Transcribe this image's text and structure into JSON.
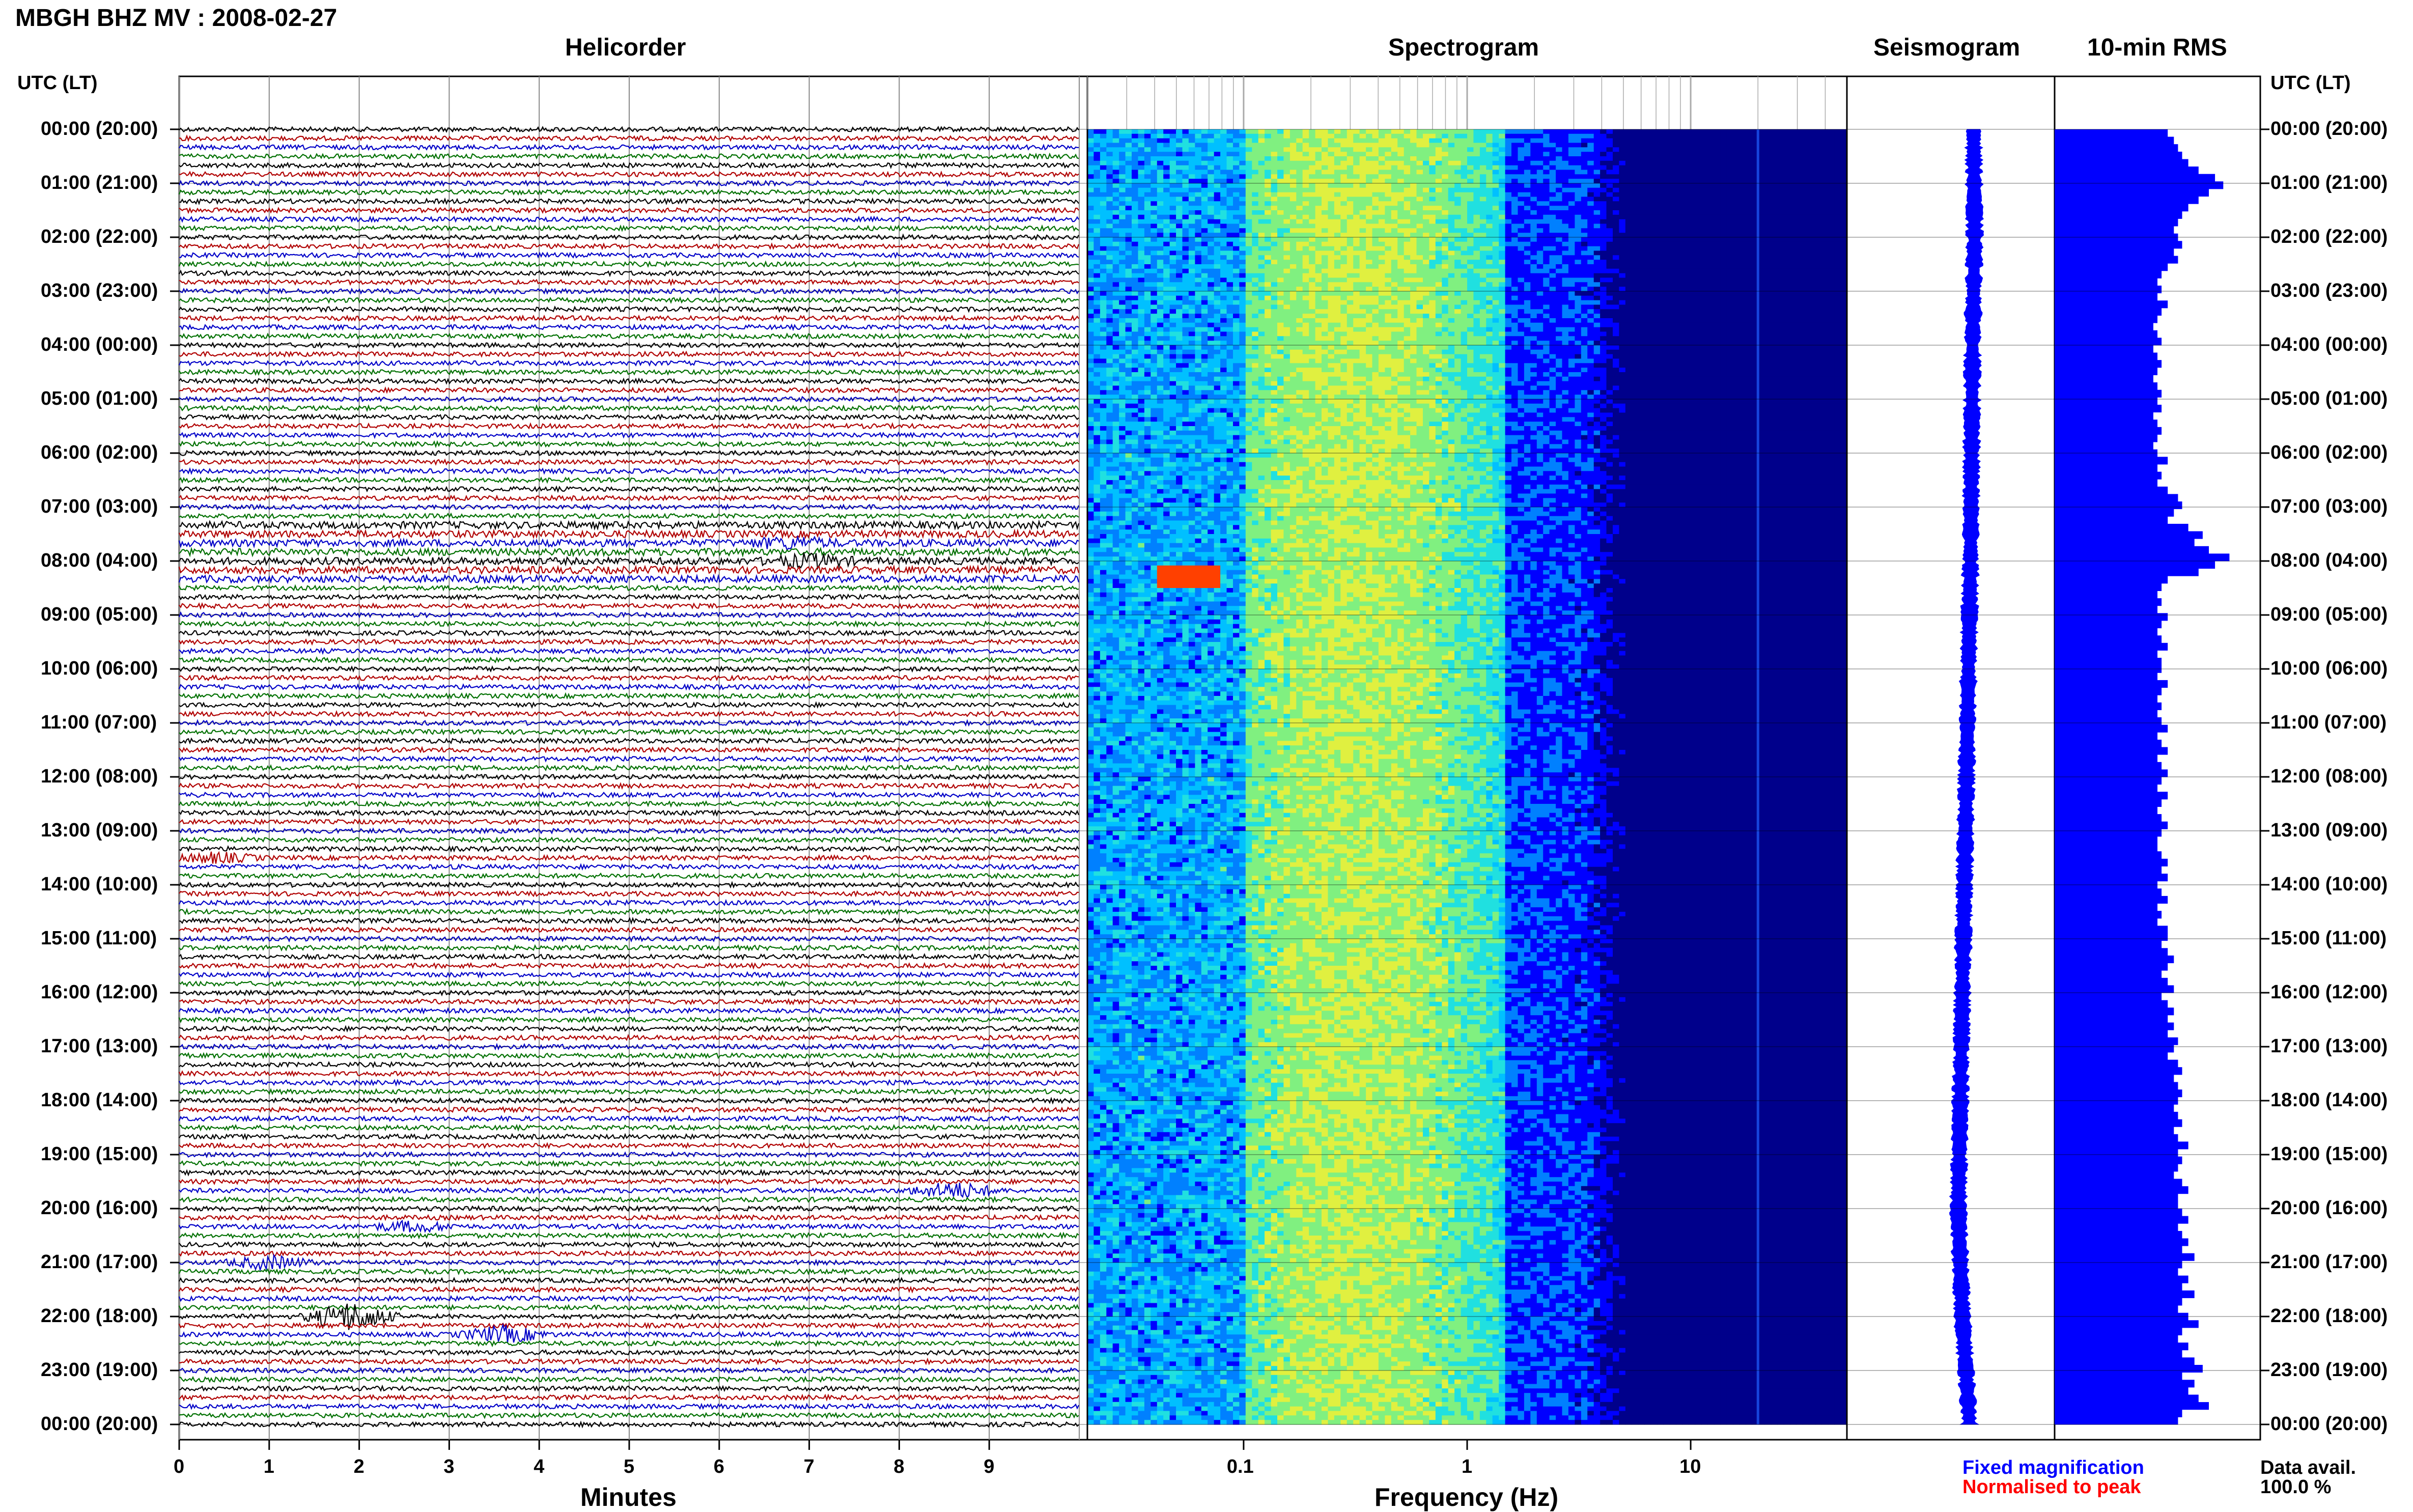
{
  "title": "MBGH BHZ MV : 2008-02-27",
  "panels": {
    "helicorder": "Helicorder",
    "spectrogram": "Spectrogram",
    "seismogram": "Seismogram",
    "rms": "10-min RMS"
  },
  "axis": {
    "utc_lt_left": "UTC (LT)",
    "utc_lt_right": "UTC (LT)",
    "minutes_label": "Minutes",
    "frequency_label": "Frequency (Hz)"
  },
  "legend": {
    "fixed": "Fixed magnification",
    "normalised": "Normalised to peak",
    "data_avail": "Data avail.",
    "data_avail_value": "100.0 %"
  },
  "colors": {
    "trace_cycle": [
      "#000000",
      "#b00000",
      "#0000c8",
      "#007000"
    ],
    "rms_bar": "#0000ff",
    "legend_fixed": "#0000ff",
    "legend_normalised": "#ff0000"
  },
  "chart_data": [
    {
      "type": "line",
      "panel": "helicorder",
      "xlabel": "Minutes",
      "x_ticks": [
        "0",
        "1",
        "2",
        "3",
        "4",
        "5",
        "6",
        "7",
        "8",
        "9"
      ],
      "xlim": [
        0,
        10
      ],
      "y_ticks": [
        "00:00 (20:00)",
        "01:00 (21:00)",
        "02:00 (22:00)",
        "03:00 (23:00)",
        "04:00 (00:00)",
        "05:00 (01:00)",
        "06:00 (02:00)",
        "07:00 (03:00)",
        "08:00 (04:00)",
        "09:00 (05:00)",
        "10:00 (06:00)",
        "11:00 (07:00)",
        "12:00 (08:00)",
        "13:00 (09:00)",
        "14:00 (10:00)",
        "15:00 (11:00)",
        "16:00 (12:00)",
        "17:00 (13:00)",
        "18:00 (14:00)",
        "19:00 (15:00)",
        "20:00 (16:00)",
        "21:00 (17:00)",
        "22:00 (18:00)",
        "23:00 (19:00)",
        "00:00 (20:00)"
      ],
      "traces_per_hour": 6,
      "events": [
        {
          "time_utc": "07:40",
          "minute": 6.8,
          "amplitude": 1.5
        },
        {
          "time_utc": "08:00",
          "minute": 7.0,
          "amplitude": 1.8
        },
        {
          "time_utc": "13:30",
          "minute": 0.4,
          "amplitude": 1.5
        },
        {
          "time_utc": "19:40",
          "minute": 8.6,
          "amplitude": 2.5
        },
        {
          "time_utc": "20:20",
          "minute": 2.6,
          "amplitude": 1.5
        },
        {
          "time_utc": "21:00",
          "minute": 1.0,
          "amplitude": 2.0
        },
        {
          "time_utc": "22:00",
          "minute": 1.9,
          "amplitude": 4.5
        },
        {
          "time_utc": "22:20",
          "minute": 3.6,
          "amplitude": 2.5
        }
      ]
    },
    {
      "type": "heatmap",
      "panel": "spectrogram",
      "xlabel": "Frequency (Hz)",
      "x_scale": "log",
      "xlim": [
        0.02,
        50
      ],
      "x_ticks": [
        "0.1",
        "1",
        "10"
      ],
      "colormap": [
        "#00008b",
        "#0000ff",
        "#0080ff",
        "#00c0ff",
        "#20e0e0",
        "#80f080",
        "#e0f040",
        "#ffc000",
        "#ff4000"
      ],
      "features": [
        {
          "label": "peak band",
          "freq_hz": [
            0.2,
            0.5
          ]
        },
        {
          "label": "hot spot",
          "time_utc": "08:15",
          "freq_hz": [
            0.04,
            0.08
          ]
        },
        {
          "label": "harmonic line",
          "freq_hz": 20
        }
      ]
    },
    {
      "type": "line",
      "panel": "seismogram",
      "x": [
        "00:00",
        "02:00",
        "04:00",
        "06:00",
        "08:00",
        "10:00",
        "12:00",
        "14:00",
        "16:00",
        "18:00",
        "20:00",
        "22:00",
        "24:00"
      ],
      "values": [
        0.1,
        0.15,
        0.05,
        0.0,
        -0.05,
        -0.15,
        -0.25,
        -0.35,
        -0.45,
        -0.55,
        -0.65,
        -0.45,
        -0.1
      ]
    },
    {
      "type": "bar",
      "panel": "rms",
      "orientation": "horizontal",
      "interval_minutes": 10,
      "values": [
        0.55,
        0.58,
        0.6,
        0.62,
        0.65,
        0.7,
        0.78,
        0.82,
        0.75,
        0.7,
        0.65,
        0.62,
        0.6,
        0.58,
        0.6,
        0.62,
        0.58,
        0.6,
        0.55,
        0.52,
        0.5,
        0.52,
        0.5,
        0.55,
        0.52,
        0.5,
        0.48,
        0.5,
        0.52,
        0.48,
        0.5,
        0.52,
        0.5,
        0.48,
        0.5,
        0.52,
        0.5,
        0.52,
        0.48,
        0.5,
        0.52,
        0.5,
        0.48,
        0.5,
        0.55,
        0.5,
        0.52,
        0.5,
        0.55,
        0.6,
        0.62,
        0.58,
        0.55,
        0.65,
        0.72,
        0.68,
        0.75,
        0.85,
        0.78,
        0.7,
        0.55,
        0.52,
        0.5,
        0.52,
        0.5,
        0.55,
        0.52,
        0.5,
        0.52,
        0.55,
        0.5,
        0.52,
        0.52,
        0.5,
        0.55,
        0.52,
        0.5,
        0.52,
        0.5,
        0.52,
        0.55,
        0.5,
        0.52,
        0.55,
        0.5,
        0.52,
        0.55,
        0.52,
        0.5,
        0.55,
        0.52,
        0.5,
        0.52,
        0.55,
        0.52,
        0.5,
        0.5,
        0.52,
        0.55,
        0.52,
        0.55,
        0.5,
        0.52,
        0.55,
        0.5,
        0.52,
        0.5,
        0.55,
        0.55,
        0.52,
        0.55,
        0.58,
        0.55,
        0.52,
        0.55,
        0.58,
        0.52,
        0.55,
        0.58,
        0.55,
        0.58,
        0.55,
        0.6,
        0.58,
        0.55,
        0.6,
        0.62,
        0.58,
        0.6,
        0.62,
        0.6,
        0.58,
        0.6,
        0.62,
        0.58,
        0.6,
        0.65,
        0.6,
        0.62,
        0.6,
        0.58,
        0.62,
        0.65,
        0.6,
        0.6,
        0.62,
        0.65,
        0.6,
        0.62,
        0.65,
        0.62,
        0.68,
        0.62,
        0.6,
        0.65,
        0.62,
        0.68,
        0.62,
        0.6,
        0.65,
        0.7,
        0.62,
        0.6,
        0.65,
        0.62,
        0.68,
        0.72,
        0.62,
        0.68,
        0.65,
        0.7,
        0.75,
        0.62,
        0.6
      ]
    }
  ]
}
